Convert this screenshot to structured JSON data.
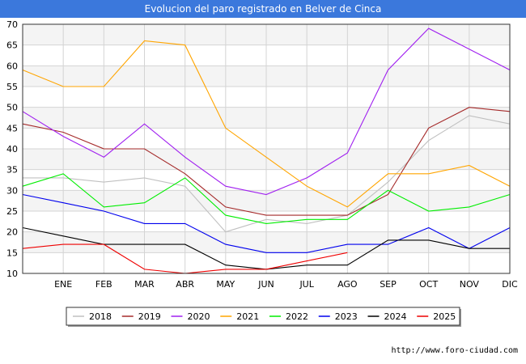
{
  "title": "Evolucion del paro registrado en Belver de Cinca",
  "watermark": "http://www.foro-ciudad.com",
  "chart_data": {
    "type": "line",
    "title": "Evolucion del paro registrado en Belver de Cinca",
    "x_labels": [
      "",
      "ENE",
      "FEB",
      "MAR",
      "ABR",
      "MAY",
      "JUN",
      "JUL",
      "AGO",
      "SEP",
      "OCT",
      "NOV",
      "DIC"
    ],
    "y_ticks": [
      10,
      15,
      20,
      25,
      30,
      35,
      40,
      45,
      50,
      55,
      60,
      65,
      70
    ],
    "ylim": [
      10,
      70
    ],
    "grid": true,
    "legend_position": "bottom",
    "series": [
      {
        "name": "2018",
        "color": "#c0c0c0",
        "values": [
          33,
          33,
          32,
          33,
          31,
          20,
          23,
          22,
          24,
          32,
          42,
          48,
          46
        ]
      },
      {
        "name": "2019",
        "color": "#a52a2a",
        "values": [
          46,
          44,
          40,
          40,
          34,
          26,
          24,
          24,
          24,
          29,
          45,
          50,
          49
        ]
      },
      {
        "name": "2020",
        "color": "#a020f0",
        "values": [
          49,
          43,
          38,
          46,
          38,
          31,
          29,
          33,
          39,
          59,
          69,
          64,
          59
        ]
      },
      {
        "name": "2021",
        "color": "#ffa500",
        "values": [
          59,
          55,
          55,
          66,
          65,
          45,
          38,
          31,
          26,
          34,
          34,
          36,
          31
        ]
      },
      {
        "name": "2022",
        "color": "#00ee00",
        "values": [
          31,
          34,
          26,
          27,
          33,
          24,
          22,
          23,
          23,
          30,
          25,
          26,
          29
        ]
      },
      {
        "name": "2023",
        "color": "#0000ee",
        "values": [
          29,
          27,
          25,
          22,
          22,
          17,
          15,
          15,
          17,
          17,
          21,
          16,
          21
        ]
      },
      {
        "name": "2024",
        "color": "#000000",
        "values": [
          21,
          19,
          17,
          17,
          17,
          12,
          11,
          12,
          12,
          18,
          18,
          16,
          16
        ]
      },
      {
        "name": "2025",
        "color": "#ee0000",
        "values": [
          16,
          17,
          17,
          11,
          10,
          11,
          11,
          13,
          15
        ]
      }
    ]
  }
}
